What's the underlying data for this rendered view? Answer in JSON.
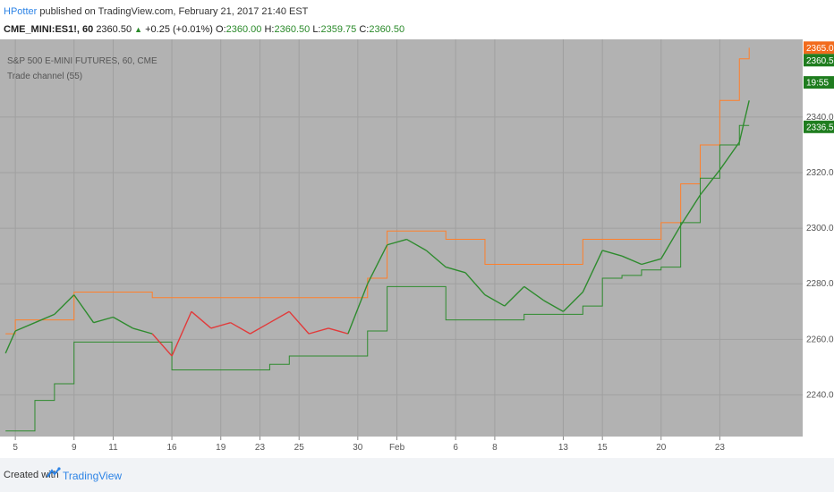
{
  "header": {
    "author": "HPotter",
    "published": "published on TradingView.com, February 21, 2017 21:40 EST",
    "symbol": "CME_MINI:ES1!, 60",
    "last": "2360.50",
    "change_arrow": "▲",
    "change": "+0.25 (+0.01%)",
    "o_label": "O:",
    "o_value": "2360.00",
    "h_label": "H:",
    "h_value": "2360.50",
    "l_label": "L:",
    "l_value": "2359.75",
    "c_label": "C:",
    "c_value": "2360.50"
  },
  "footer": {
    "created_with": "Created with",
    "brand": "TradingView"
  },
  "colors": {
    "background": "#b2b2b2",
    "grid": "#a0a0a0",
    "price_up": "#2e8b2e",
    "price_down": "#e23a3a",
    "upper_channel": "#ff7f2a",
    "lower_channel": "#2e8b2e",
    "tag_orange": "#f26b1d",
    "tag_green": "#1f7d1f"
  },
  "chart_data": {
    "type": "line",
    "title": "S&P 500 E-MINI FUTURES, 60, CME",
    "indicator": "Trade channel (55)",
    "ylim": [
      2225,
      2368
    ],
    "y_ticks": [
      2240,
      2260,
      2280,
      2300,
      2320,
      2340
    ],
    "y_tick_labels": [
      "2240.00",
      "2260.00",
      "2280.00",
      "2300.00",
      "2320.00",
      "2340.00"
    ],
    "x": [
      0,
      1,
      3,
      5,
      7,
      9,
      11,
      13,
      15,
      17,
      19,
      21,
      23,
      25,
      27,
      29,
      31,
      33,
      35,
      37,
      39,
      41,
      43,
      45,
      47,
      49,
      51,
      53,
      55,
      57,
      59,
      61,
      63,
      65,
      67,
      69,
      71,
      73,
      75,
      76
    ],
    "x_ticks": [
      {
        "pos": 1,
        "label": "5"
      },
      {
        "pos": 7,
        "label": "9"
      },
      {
        "pos": 11,
        "label": "11"
      },
      {
        "pos": 17,
        "label": "16"
      },
      {
        "pos": 22,
        "label": "19"
      },
      {
        "pos": 26,
        "label": "23"
      },
      {
        "pos": 30,
        "label": "25"
      },
      {
        "pos": 36,
        "label": "30"
      },
      {
        "pos": 40,
        "label": "Feb"
      },
      {
        "pos": 46,
        "label": "6"
      },
      {
        "pos": 50,
        "label": "8"
      },
      {
        "pos": 57,
        "label": "13"
      },
      {
        "pos": 61,
        "label": "15"
      },
      {
        "pos": 67,
        "label": "20"
      },
      {
        "pos": 73,
        "label": "23"
      }
    ],
    "series": [
      {
        "role": "price",
        "values": [
          2255,
          2263,
          2266,
          2269,
          2276,
          2266,
          2268,
          2264,
          2262,
          2254,
          2270,
          2264,
          2266,
          2262,
          2266,
          2270,
          2262,
          2264,
          2262,
          2280,
          2294,
          2296,
          2292,
          2286,
          2284,
          2276,
          2272,
          2279,
          2274,
          2270,
          2277,
          2292,
          2290,
          2287,
          2289,
          2301,
          2312,
          2321,
          2331,
          2346
        ]
      },
      {
        "role": "upper_channel",
        "values": [
          2262,
          2267,
          2267,
          2267,
          2277,
          2277,
          2277,
          2277,
          2275,
          2275,
          2275,
          2275,
          2275,
          2275,
          2275,
          2275,
          2275,
          2275,
          2275,
          2282,
          2299,
          2299,
          2299,
          2296,
          2296,
          2287,
          2287,
          2287,
          2287,
          2287,
          2296,
          2296,
          2296,
          2296,
          2302,
          2316,
          2330,
          2346,
          2361,
          2365
        ]
      },
      {
        "role": "lower_channel",
        "values": [
          2227,
          2227,
          2238,
          2244,
          2259,
          2259,
          2259,
          2259,
          2259,
          2249,
          2249,
          2249,
          2249,
          2249,
          2251,
          2254,
          2254,
          2254,
          2254,
          2263,
          2279,
          2279,
          2279,
          2267,
          2267,
          2267,
          2267,
          2269,
          2269,
          2269,
          2272,
          2282,
          2283,
          2285,
          2286,
          2302,
          2318,
          2330,
          2337,
          2337
        ]
      }
    ],
    "price_tags": [
      {
        "label": "2365.00",
        "value": 2365.0,
        "color": "#f26b1d"
      },
      {
        "label": "2360.50",
        "value": 2360.5,
        "color": "#1f7d1f"
      },
      {
        "label": "19:55",
        "value": 2352.5,
        "color": "#1f7d1f"
      },
      {
        "label": "2336.50",
        "value": 2336.5,
        "color": "#1f7d1f"
      }
    ]
  }
}
